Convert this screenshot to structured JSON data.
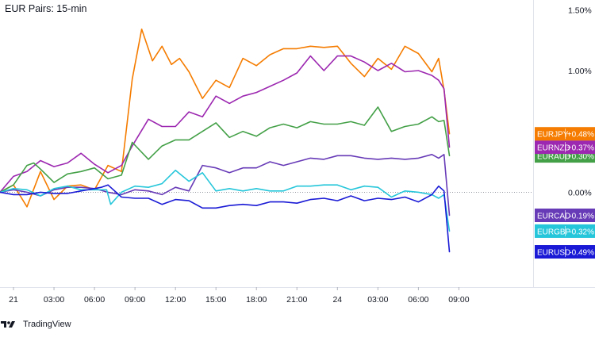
{
  "chart_data": {
    "type": "line",
    "title": "EUR Pairs: 15-min",
    "y_unit": "%",
    "ylim": [
      -0.78,
      1.58
    ],
    "y_ticks": [
      "1.50%",
      "1.00%",
      "0.00%"
    ],
    "y_tick_values": [
      1.5,
      1.0,
      0.0
    ],
    "x_ticks": [
      "21",
      "03:00",
      "06:00",
      "09:00",
      "12:00",
      "15:00",
      "18:00",
      "21:00",
      "24",
      "03:00",
      "06:00",
      "09:00"
    ],
    "x_tick_hours": [
      0,
      3,
      6,
      9,
      12,
      15,
      18,
      21,
      24,
      27,
      30,
      33
    ],
    "x_range_hours": [
      -1,
      38.5
    ],
    "grid": false,
    "zero_line": true,
    "series": [
      {
        "name": "EURJPY",
        "label": "+0.48%",
        "color": "#f57c00",
        "x": [
          -1,
          0,
          1,
          2,
          3,
          4,
          5,
          6,
          7,
          8,
          8.8,
          9.5,
          10.3,
          11,
          11.7,
          12.3,
          13,
          14,
          15,
          16,
          17,
          18,
          19,
          20,
          21,
          22,
          23,
          24,
          25,
          26,
          27,
          28,
          29,
          30,
          31,
          31.5,
          31.9,
          32.3
        ],
        "y": [
          0.0,
          0.06,
          -0.12,
          0.17,
          -0.06,
          0.05,
          0.06,
          0.02,
          0.22,
          0.17,
          0.93,
          1.34,
          1.08,
          1.2,
          1.05,
          1.1,
          0.99,
          0.77,
          0.92,
          0.86,
          1.1,
          1.04,
          1.13,
          1.18,
          1.18,
          1.2,
          1.19,
          1.2,
          1.06,
          0.95,
          1.1,
          1.01,
          1.2,
          1.14,
          0.99,
          1.1,
          0.84,
          0.48
        ]
      },
      {
        "name": "EURNZD",
        "label": "+0.37%",
        "color": "#9c27b0",
        "x": [
          -1,
          0,
          1,
          2,
          3,
          4,
          5,
          6,
          7,
          8,
          8.8,
          10,
          11,
          12,
          13,
          14,
          15,
          16,
          17,
          18,
          19,
          20,
          21,
          22,
          23,
          24,
          25,
          26,
          27,
          28,
          29,
          30,
          31,
          31.5,
          31.9,
          32.3
        ],
        "y": [
          0.0,
          0.13,
          0.17,
          0.26,
          0.21,
          0.24,
          0.32,
          0.23,
          0.16,
          0.22,
          0.38,
          0.6,
          0.54,
          0.54,
          0.66,
          0.62,
          0.79,
          0.73,
          0.79,
          0.82,
          0.87,
          0.92,
          0.98,
          1.12,
          1.0,
          1.12,
          1.12,
          1.07,
          1.0,
          1.06,
          0.99,
          1.0,
          0.96,
          0.92,
          0.85,
          0.37
        ]
      },
      {
        "name": "EURAUD",
        "label": "+0.30%",
        "color": "#43a047",
        "x": [
          -1,
          0,
          1,
          1.5,
          2,
          3,
          4,
          5,
          6,
          7,
          8,
          8.8,
          10,
          11,
          12,
          13,
          14,
          15,
          16,
          17,
          18,
          19,
          20,
          21,
          22,
          23,
          24,
          25,
          26,
          27,
          28,
          29,
          30,
          31,
          31.5,
          31.9,
          32.3
        ],
        "y": [
          0.0,
          0.06,
          0.22,
          0.24,
          0.19,
          0.08,
          0.15,
          0.17,
          0.2,
          0.11,
          0.14,
          0.41,
          0.27,
          0.38,
          0.43,
          0.43,
          0.5,
          0.57,
          0.45,
          0.5,
          0.46,
          0.53,
          0.56,
          0.53,
          0.58,
          0.56,
          0.56,
          0.58,
          0.55,
          0.7,
          0.5,
          0.54,
          0.56,
          0.62,
          0.58,
          0.59,
          0.3
        ]
      },
      {
        "name": "EURCAD",
        "label": "-0.19%",
        "color": "#673ab7",
        "x": [
          -1,
          0,
          1,
          2,
          3,
          4,
          5,
          6,
          7,
          8,
          9,
          10,
          11,
          12,
          13,
          14,
          15,
          16,
          17,
          18,
          19,
          20,
          21,
          22,
          23,
          24,
          25,
          26,
          27,
          28,
          29,
          30,
          31,
          31.5,
          31.9,
          32.3
        ],
        "y": [
          0.0,
          0.02,
          0.0,
          -0.03,
          0.02,
          0.04,
          0.04,
          0.03,
          0.0,
          -0.02,
          0.02,
          0.01,
          -0.02,
          0.04,
          0.01,
          0.22,
          0.2,
          0.16,
          0.2,
          0.2,
          0.25,
          0.22,
          0.25,
          0.28,
          0.27,
          0.3,
          0.3,
          0.28,
          0.27,
          0.28,
          0.27,
          0.28,
          0.31,
          0.28,
          0.31,
          -0.19
        ]
      },
      {
        "name": "EURGBP",
        "label": "-0.32%",
        "color": "#26c6da",
        "x": [
          -1,
          0,
          1,
          2,
          3,
          4,
          5,
          6,
          6.9,
          7.2,
          8,
          9,
          10,
          11,
          12,
          13,
          14,
          15,
          16,
          17,
          18,
          19,
          20,
          21,
          22,
          23,
          24,
          25,
          26,
          27,
          28,
          29,
          30,
          31,
          31.5,
          31.9,
          32.3
        ],
        "y": [
          0.0,
          0.03,
          0.02,
          -0.03,
          0.03,
          0.05,
          0.02,
          0.02,
          0.02,
          -0.1,
          0.0,
          0.05,
          0.04,
          0.07,
          0.18,
          0.09,
          0.16,
          0.01,
          0.03,
          0.01,
          0.03,
          0.01,
          0.01,
          0.05,
          0.05,
          0.06,
          0.06,
          0.02,
          0.05,
          0.04,
          -0.04,
          0.01,
          0.0,
          -0.02,
          -0.05,
          -0.02,
          -0.32
        ]
      },
      {
        "name": "EURUSD",
        "label": "-0.49%",
        "color": "#1a1ad6",
        "x": [
          -1,
          0,
          1,
          2,
          3,
          4,
          5,
          6,
          6.5,
          7,
          8,
          9,
          10,
          11,
          12,
          13,
          14,
          15,
          16,
          17,
          18,
          19,
          20,
          21,
          22,
          23,
          24,
          25,
          26,
          27,
          28,
          29,
          30,
          31,
          31.5,
          31.9,
          32.3
        ],
        "y": [
          0.0,
          -0.02,
          -0.02,
          0.0,
          -0.01,
          -0.01,
          0.01,
          0.03,
          0.04,
          0.06,
          -0.04,
          -0.05,
          -0.05,
          -0.1,
          -0.06,
          -0.07,
          -0.13,
          -0.13,
          -0.11,
          -0.1,
          -0.11,
          -0.08,
          -0.08,
          -0.09,
          -0.06,
          -0.05,
          -0.07,
          -0.03,
          -0.07,
          -0.05,
          -0.06,
          -0.04,
          -0.08,
          -0.02,
          0.05,
          0.01,
          -0.49
        ]
      }
    ]
  },
  "footer": {
    "brand": "TradingView",
    "logo_icon": "tradingview-logo-icon"
  }
}
